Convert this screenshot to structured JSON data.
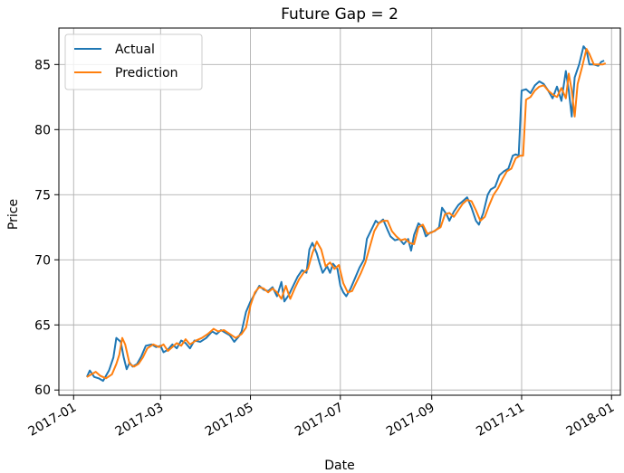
{
  "chart_data": {
    "type": "line",
    "title": "Future Gap = 2",
    "xlabel": "Date",
    "ylabel": "Price",
    "x_axis_type": "date",
    "xlim": [
      "2016-12-22",
      "2018-01-07"
    ],
    "ylim": [
      59.6,
      87.8
    ],
    "x_ticks": [
      "2017-01",
      "2017-03",
      "2017-05",
      "2017-07",
      "2017-09",
      "2017-11",
      "2018-01"
    ],
    "y_ticks": [
      60,
      65,
      70,
      75,
      80,
      85
    ],
    "grid": true,
    "legend_position": "top-left",
    "series": [
      {
        "name": "Actual",
        "color": "#1f77b4",
        "points": [
          [
            "2017-01-10",
            61.0
          ],
          [
            "2017-01-12",
            61.5
          ],
          [
            "2017-01-15",
            61.0
          ],
          [
            "2017-01-18",
            60.9
          ],
          [
            "2017-01-21",
            60.7
          ],
          [
            "2017-01-25",
            61.5
          ],
          [
            "2017-01-28",
            62.5
          ],
          [
            "2017-01-30",
            64.0
          ],
          [
            "2017-02-02",
            63.7
          ],
          [
            "2017-02-04",
            62.5
          ],
          [
            "2017-02-06",
            61.6
          ],
          [
            "2017-02-08",
            62.1
          ],
          [
            "2017-02-10",
            61.8
          ],
          [
            "2017-02-13",
            62.0
          ],
          [
            "2017-02-16",
            62.6
          ],
          [
            "2017-02-19",
            63.4
          ],
          [
            "2017-02-23",
            63.5
          ],
          [
            "2017-02-26",
            63.3
          ],
          [
            "2017-03-01",
            63.4
          ],
          [
            "2017-03-03",
            62.9
          ],
          [
            "2017-03-06",
            63.1
          ],
          [
            "2017-03-09",
            63.5
          ],
          [
            "2017-03-12",
            63.2
          ],
          [
            "2017-03-15",
            63.8
          ],
          [
            "2017-03-18",
            63.6
          ],
          [
            "2017-03-21",
            63.2
          ],
          [
            "2017-03-24",
            63.8
          ],
          [
            "2017-03-28",
            63.7
          ],
          [
            "2017-04-01",
            64.0
          ],
          [
            "2017-04-05",
            64.5
          ],
          [
            "2017-04-08",
            64.3
          ],
          [
            "2017-04-11",
            64.6
          ],
          [
            "2017-04-14",
            64.4
          ],
          [
            "2017-04-17",
            64.2
          ],
          [
            "2017-04-20",
            63.7
          ],
          [
            "2017-04-23",
            64.1
          ],
          [
            "2017-04-25",
            64.5
          ],
          [
            "2017-04-28",
            66.0
          ],
          [
            "2017-05-01",
            66.8
          ],
          [
            "2017-05-04",
            67.4
          ],
          [
            "2017-05-07",
            68.0
          ],
          [
            "2017-05-10",
            67.7
          ],
          [
            "2017-05-13",
            67.6
          ],
          [
            "2017-05-16",
            67.9
          ],
          [
            "2017-05-19",
            67.2
          ],
          [
            "2017-05-22",
            68.3
          ],
          [
            "2017-05-24",
            66.8
          ],
          [
            "2017-05-27",
            67.3
          ],
          [
            "2017-05-30",
            68.0
          ],
          [
            "2017-06-02",
            68.7
          ],
          [
            "2017-06-05",
            69.2
          ],
          [
            "2017-06-08",
            69.0
          ],
          [
            "2017-06-10",
            70.8
          ],
          [
            "2017-06-12",
            71.3
          ],
          [
            "2017-06-15",
            70.5
          ],
          [
            "2017-06-17",
            69.7
          ],
          [
            "2017-06-19",
            69.0
          ],
          [
            "2017-06-22",
            69.5
          ],
          [
            "2017-06-24",
            69.0
          ],
          [
            "2017-06-26",
            69.7
          ],
          [
            "2017-06-29",
            69.3
          ],
          [
            "2017-07-01",
            68.0
          ],
          [
            "2017-07-03",
            67.5
          ],
          [
            "2017-07-05",
            67.2
          ],
          [
            "2017-07-08",
            67.8
          ],
          [
            "2017-07-11",
            68.6
          ],
          [
            "2017-07-14",
            69.4
          ],
          [
            "2017-07-17",
            70.0
          ],
          [
            "2017-07-19",
            71.6
          ],
          [
            "2017-07-22",
            72.3
          ],
          [
            "2017-07-25",
            73.0
          ],
          [
            "2017-07-27",
            72.8
          ],
          [
            "2017-07-30",
            73.1
          ],
          [
            "2017-08-02",
            72.3
          ],
          [
            "2017-08-04",
            71.8
          ],
          [
            "2017-08-07",
            71.5
          ],
          [
            "2017-08-10",
            71.6
          ],
          [
            "2017-08-13",
            71.2
          ],
          [
            "2017-08-16",
            71.6
          ],
          [
            "2017-08-18",
            70.7
          ],
          [
            "2017-08-20",
            71.9
          ],
          [
            "2017-08-23",
            72.8
          ],
          [
            "2017-08-26",
            72.5
          ],
          [
            "2017-08-28",
            71.8
          ],
          [
            "2017-08-31",
            72.1
          ],
          [
            "2017-09-03",
            72.2
          ],
          [
            "2017-09-06",
            72.5
          ],
          [
            "2017-09-08",
            74.0
          ],
          [
            "2017-09-11",
            73.5
          ],
          [
            "2017-09-13",
            73.0
          ],
          [
            "2017-09-16",
            73.7
          ],
          [
            "2017-09-19",
            74.2
          ],
          [
            "2017-09-22",
            74.5
          ],
          [
            "2017-09-25",
            74.8
          ],
          [
            "2017-09-28",
            74.0
          ],
          [
            "2017-10-01",
            73.0
          ],
          [
            "2017-10-03",
            72.7
          ],
          [
            "2017-10-06",
            73.6
          ],
          [
            "2017-10-09",
            75.0
          ],
          [
            "2017-10-11",
            75.4
          ],
          [
            "2017-10-14",
            75.6
          ],
          [
            "2017-10-17",
            76.5
          ],
          [
            "2017-10-20",
            76.8
          ],
          [
            "2017-10-23",
            77.0
          ],
          [
            "2017-10-26",
            78.0
          ],
          [
            "2017-10-28",
            78.1
          ],
          [
            "2017-10-30",
            78.0
          ],
          [
            "2017-11-01",
            83.0
          ],
          [
            "2017-11-04",
            83.1
          ],
          [
            "2017-11-07",
            82.8
          ],
          [
            "2017-11-10",
            83.4
          ],
          [
            "2017-11-13",
            83.7
          ],
          [
            "2017-11-16",
            83.5
          ],
          [
            "2017-11-19",
            83.0
          ],
          [
            "2017-11-22",
            82.4
          ],
          [
            "2017-11-25",
            83.3
          ],
          [
            "2017-11-28",
            82.2
          ],
          [
            "2017-12-01",
            84.5
          ],
          [
            "2017-12-03",
            83.0
          ],
          [
            "2017-12-05",
            81.0
          ],
          [
            "2017-12-07",
            84.0
          ],
          [
            "2017-12-10",
            85.0
          ],
          [
            "2017-12-13",
            86.4
          ],
          [
            "2017-12-15",
            86.1
          ],
          [
            "2017-12-17",
            85.0
          ],
          [
            "2017-12-20",
            85.0
          ],
          [
            "2017-12-23",
            84.9
          ],
          [
            "2017-12-25",
            85.2
          ],
          [
            "2017-12-27",
            85.3
          ]
        ]
      },
      {
        "name": "Prediction",
        "color": "#ff7f0e",
        "points": [
          [
            "2017-01-10",
            61.0
          ],
          [
            "2017-01-13",
            61.2
          ],
          [
            "2017-01-16",
            61.4
          ],
          [
            "2017-01-19",
            61.1
          ],
          [
            "2017-01-23",
            60.9
          ],
          [
            "2017-01-27",
            61.2
          ],
          [
            "2017-01-30",
            62.0
          ],
          [
            "2017-02-01",
            62.7
          ],
          [
            "2017-02-03",
            64.0
          ],
          [
            "2017-02-05",
            63.5
          ],
          [
            "2017-02-08",
            62.0
          ],
          [
            "2017-02-11",
            61.8
          ],
          [
            "2017-02-14",
            62.0
          ],
          [
            "2017-02-17",
            62.5
          ],
          [
            "2017-02-20",
            63.2
          ],
          [
            "2017-02-24",
            63.5
          ],
          [
            "2017-02-28",
            63.3
          ],
          [
            "2017-03-03",
            63.5
          ],
          [
            "2017-03-06",
            63.0
          ],
          [
            "2017-03-09",
            63.3
          ],
          [
            "2017-03-12",
            63.6
          ],
          [
            "2017-03-15",
            63.4
          ],
          [
            "2017-03-18",
            63.9
          ],
          [
            "2017-03-21",
            63.5
          ],
          [
            "2017-03-25",
            63.8
          ],
          [
            "2017-03-29",
            64.0
          ],
          [
            "2017-04-02",
            64.3
          ],
          [
            "2017-04-06",
            64.7
          ],
          [
            "2017-04-09",
            64.5
          ],
          [
            "2017-04-13",
            64.6
          ],
          [
            "2017-04-17",
            64.3
          ],
          [
            "2017-04-21",
            64.0
          ],
          [
            "2017-04-25",
            64.3
          ],
          [
            "2017-04-28",
            64.8
          ],
          [
            "2017-05-01",
            66.5
          ],
          [
            "2017-05-04",
            67.5
          ],
          [
            "2017-05-07",
            67.9
          ],
          [
            "2017-05-10",
            67.8
          ],
          [
            "2017-05-13",
            67.5
          ],
          [
            "2017-05-16",
            67.8
          ],
          [
            "2017-05-19",
            67.5
          ],
          [
            "2017-05-22",
            67.0
          ],
          [
            "2017-05-25",
            68.0
          ],
          [
            "2017-05-28",
            67.0
          ],
          [
            "2017-05-31",
            67.8
          ],
          [
            "2017-06-03",
            68.5
          ],
          [
            "2017-06-06",
            69.0
          ],
          [
            "2017-06-09",
            69.3
          ],
          [
            "2017-06-12",
            70.5
          ],
          [
            "2017-06-15",
            71.4
          ],
          [
            "2017-06-18",
            70.8
          ],
          [
            "2017-06-21",
            69.5
          ],
          [
            "2017-06-24",
            69.8
          ],
          [
            "2017-06-27",
            69.3
          ],
          [
            "2017-06-30",
            69.6
          ],
          [
            "2017-07-03",
            68.2
          ],
          [
            "2017-07-06",
            67.5
          ],
          [
            "2017-07-09",
            67.6
          ],
          [
            "2017-07-12",
            68.3
          ],
          [
            "2017-07-15",
            69.0
          ],
          [
            "2017-07-18",
            69.8
          ],
          [
            "2017-07-21",
            71.0
          ],
          [
            "2017-07-24",
            72.2
          ],
          [
            "2017-07-27",
            72.8
          ],
          [
            "2017-07-30",
            73.0
          ],
          [
            "2017-08-02",
            73.0
          ],
          [
            "2017-08-05",
            72.2
          ],
          [
            "2017-08-08",
            71.8
          ],
          [
            "2017-08-11",
            71.5
          ],
          [
            "2017-08-14",
            71.6
          ],
          [
            "2017-08-17",
            71.3
          ],
          [
            "2017-08-20",
            71.2
          ],
          [
            "2017-08-23",
            72.5
          ],
          [
            "2017-08-26",
            72.7
          ],
          [
            "2017-08-29",
            72.0
          ],
          [
            "2017-09-01",
            72.1
          ],
          [
            "2017-09-04",
            72.3
          ],
          [
            "2017-09-07",
            72.5
          ],
          [
            "2017-09-10",
            73.5
          ],
          [
            "2017-09-13",
            73.6
          ],
          [
            "2017-09-16",
            73.3
          ],
          [
            "2017-09-19",
            73.8
          ],
          [
            "2017-09-22",
            74.3
          ],
          [
            "2017-09-25",
            74.6
          ],
          [
            "2017-09-28",
            74.5
          ],
          [
            "2017-10-01",
            73.8
          ],
          [
            "2017-10-04",
            73.0
          ],
          [
            "2017-10-07",
            73.3
          ],
          [
            "2017-10-10",
            74.2
          ],
          [
            "2017-10-13",
            75.0
          ],
          [
            "2017-10-16",
            75.5
          ],
          [
            "2017-10-19",
            76.2
          ],
          [
            "2017-10-22",
            76.8
          ],
          [
            "2017-10-25",
            77.0
          ],
          [
            "2017-10-28",
            77.8
          ],
          [
            "2017-10-31",
            78.0
          ],
          [
            "2017-11-02",
            78.0
          ],
          [
            "2017-11-04",
            82.3
          ],
          [
            "2017-11-07",
            82.5
          ],
          [
            "2017-11-10",
            83.0
          ],
          [
            "2017-11-13",
            83.3
          ],
          [
            "2017-11-16",
            83.4
          ],
          [
            "2017-11-19",
            83.0
          ],
          [
            "2017-11-22",
            82.7
          ],
          [
            "2017-11-25",
            82.5
          ],
          [
            "2017-11-28",
            83.2
          ],
          [
            "2017-12-01",
            82.4
          ],
          [
            "2017-12-03",
            84.3
          ],
          [
            "2017-12-05",
            83.0
          ],
          [
            "2017-12-07",
            81.0
          ],
          [
            "2017-12-09",
            83.5
          ],
          [
            "2017-12-12",
            84.8
          ],
          [
            "2017-12-15",
            86.2
          ],
          [
            "2017-12-17",
            85.8
          ],
          [
            "2017-12-20",
            85.0
          ],
          [
            "2017-12-23",
            85.0
          ],
          [
            "2017-12-26",
            85.0
          ],
          [
            "2017-12-28",
            85.1
          ]
        ]
      }
    ]
  }
}
